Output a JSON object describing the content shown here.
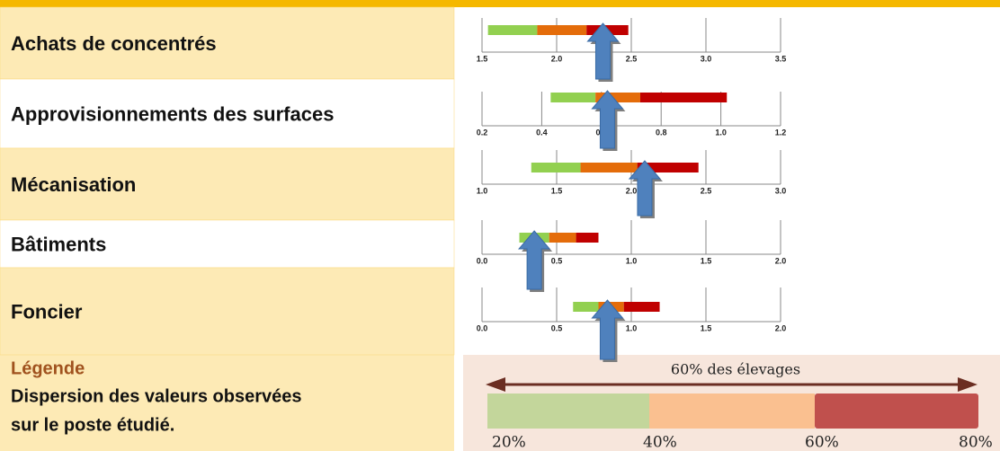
{
  "rows": [
    {
      "label": "Achats de concentrés",
      "xlim": [
        1.5,
        3.5
      ],
      "xticks": [
        {
          "value": 1.5,
          "label": "1.5"
        },
        {
          "value": 2,
          "label": "2.0"
        },
        {
          "value": 2.5,
          "label": "2.5"
        },
        {
          "value": 3,
          "label": "3.0"
        },
        {
          "value": 3.5,
          "label": "3.5"
        }
      ],
      "values": [
        1.54,
        1.87,
        2.2,
        2.48
      ],
      "arrow": 2.31
    },
    {
      "label": "Approvisionnements des surfaces",
      "xlim": [
        0.2,
        1.2
      ],
      "xticks": [
        {
          "value": 0.2,
          "label": "0.2"
        },
        {
          "value": 0.4,
          "label": "0.4"
        },
        {
          "value": 0.6,
          "label": "0.6"
        },
        {
          "value": 0.8,
          "label": "0.8"
        },
        {
          "value": 1,
          "label": "1.0"
        },
        {
          "value": 1.2,
          "label": "1.2"
        }
      ],
      "values": [
        0.43,
        0.58,
        0.73,
        1.02
      ],
      "arrow": 0.62
    },
    {
      "label": "Mécanisation",
      "xlim": [
        1,
        3
      ],
      "xticks": [
        {
          "value": 1,
          "label": "1.0"
        },
        {
          "value": 1.5,
          "label": "1.5"
        },
        {
          "value": 2,
          "label": "2.0"
        },
        {
          "value": 2.5,
          "label": "2.5"
        },
        {
          "value": 3,
          "label": "3.0"
        }
      ],
      "values": [
        1.33,
        1.66,
        2.04,
        2.45
      ],
      "arrow": 2.09
    },
    {
      "label": "Bâtiments",
      "xlim": [
        0,
        2
      ],
      "xticks": [
        {
          "value": 0,
          "label": "0.0"
        },
        {
          "value": 0.5,
          "label": "0.5"
        },
        {
          "value": 1,
          "label": "1.0"
        },
        {
          "value": 1.5,
          "label": "1.5"
        },
        {
          "value": 2,
          "label": "2.0"
        }
      ],
      "values": [
        0.25,
        0.45,
        0.63,
        0.78
      ],
      "arrow": 0.35
    },
    {
      "label": "Foncier",
      "xlim": [
        0,
        2
      ],
      "xticks": [
        {
          "value": 0,
          "label": "0.0"
        },
        {
          "value": 0.5,
          "label": "0.5"
        },
        {
          "value": 1,
          "label": "1.0"
        },
        {
          "value": 1.5,
          "label": "1.5"
        },
        {
          "value": 2,
          "label": "2.0"
        }
      ],
      "values": [
        0.61,
        0.78,
        0.95,
        1.19
      ],
      "arrow": 0.84
    }
  ],
  "colors": [
    "#92d050",
    "#e46c0a",
    "#c00000"
  ],
  "legend": {
    "title": "Légende",
    "text_line1": "Dispersion des valeurs observées",
    "text_line2": "sur le poste étudié.",
    "span_label": "60% des élevages",
    "percentiles": [
      "20%",
      "40%",
      "60%",
      "80%"
    ]
  }
}
